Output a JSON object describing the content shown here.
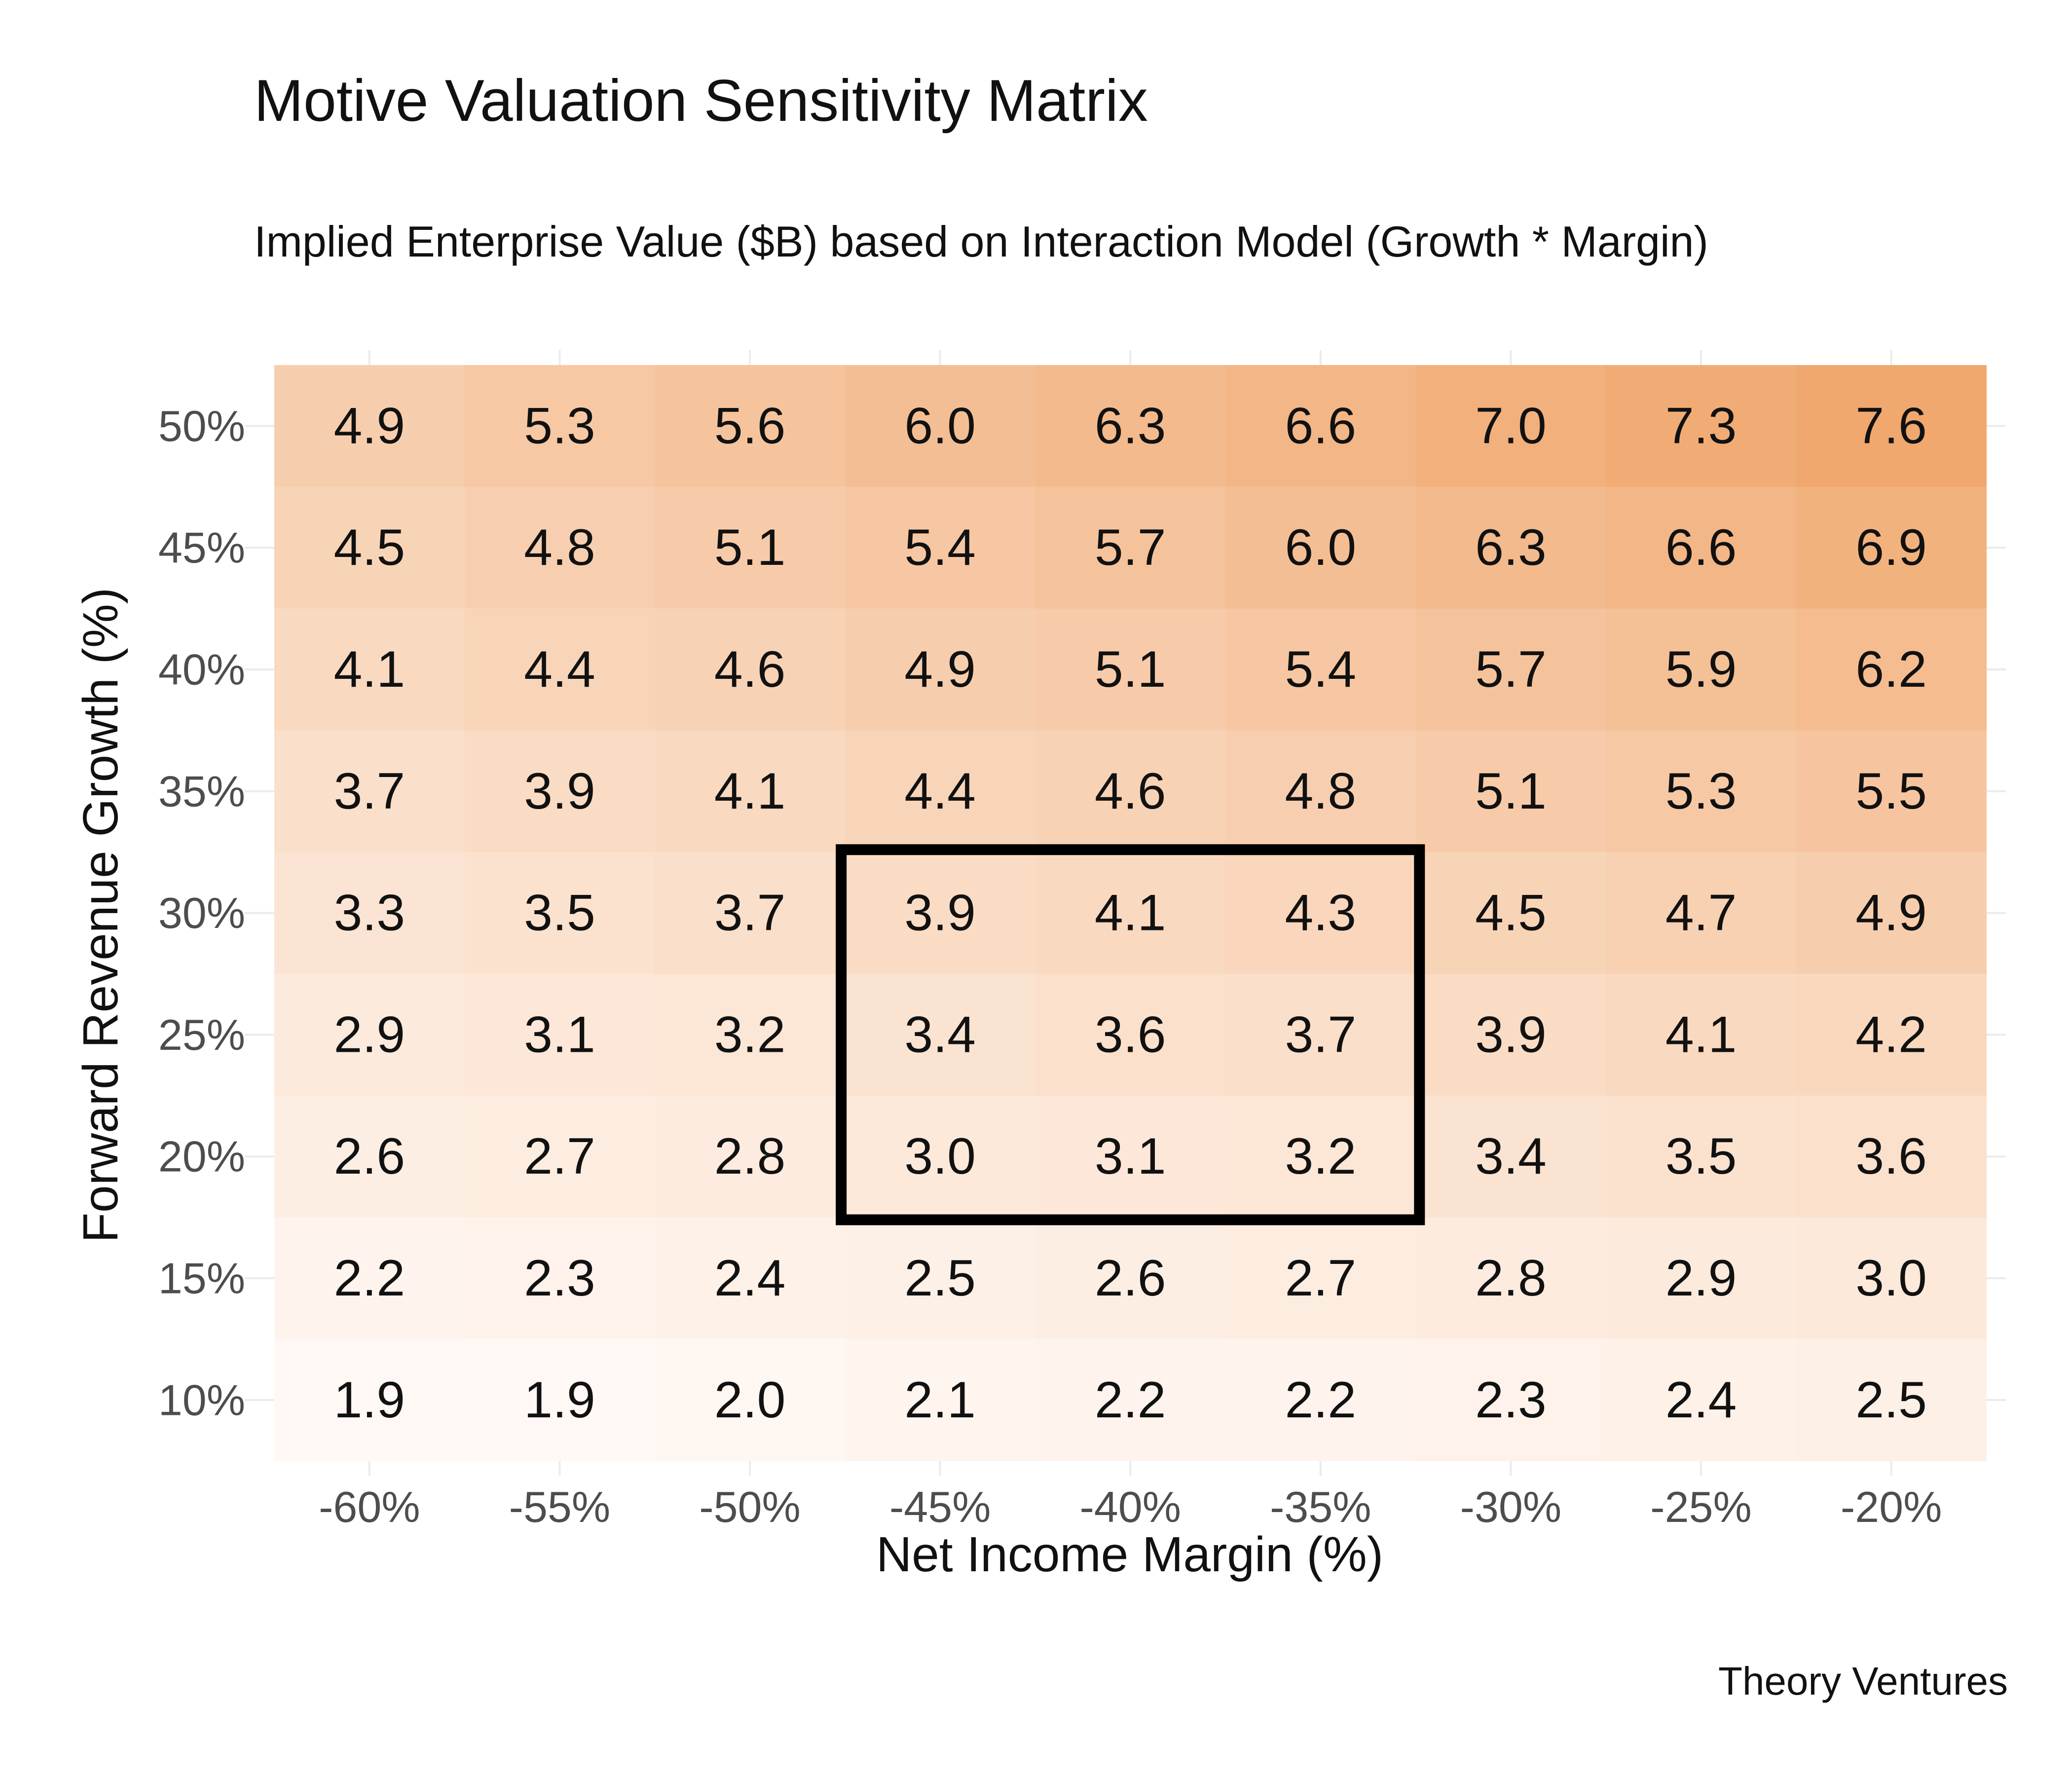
{
  "chart_data": {
    "type": "heatmap",
    "title": "Motive Valuation Sensitivity Matrix",
    "subtitle": "Implied Enterprise Value ($B) based on Interaction Model (Growth * Margin)",
    "xlabel": "Net Income Margin (%)",
    "ylabel": "Forward Revenue Growth (%)",
    "caption": "Theory Ventures",
    "x": [
      "-60%",
      "-55%",
      "-50%",
      "-45%",
      "-40%",
      "-35%",
      "-30%",
      "-25%",
      "-20%"
    ],
    "y": [
      "50%",
      "45%",
      "40%",
      "35%",
      "30%",
      "25%",
      "20%",
      "15%",
      "10%"
    ],
    "values": [
      [
        "4.9",
        "5.3",
        "5.6",
        "6.0",
        "6.3",
        "6.6",
        "7.0",
        "7.3",
        "7.6"
      ],
      [
        "4.5",
        "4.8",
        "5.1",
        "5.4",
        "5.7",
        "6.0",
        "6.3",
        "6.6",
        "6.9"
      ],
      [
        "4.1",
        "4.4",
        "4.6",
        "4.9",
        "5.1",
        "5.4",
        "5.7",
        "5.9",
        "6.2"
      ],
      [
        "3.7",
        "3.9",
        "4.1",
        "4.4",
        "4.6",
        "4.8",
        "5.1",
        "5.3",
        "5.5"
      ],
      [
        "3.3",
        "3.5",
        "3.7",
        "3.9",
        "4.1",
        "4.3",
        "4.5",
        "4.7",
        "4.9"
      ],
      [
        "2.9",
        "3.1",
        "3.2",
        "3.4",
        "3.6",
        "3.7",
        "3.9",
        "4.1",
        "4.2"
      ],
      [
        "2.6",
        "2.7",
        "2.8",
        "3.0",
        "3.1",
        "3.2",
        "3.4",
        "3.5",
        "3.6"
      ],
      [
        "2.2",
        "2.3",
        "2.4",
        "2.5",
        "2.6",
        "2.7",
        "2.8",
        "2.9",
        "3.0"
      ],
      [
        "1.9",
        "1.9",
        "2.0",
        "2.1",
        "2.2",
        "2.2",
        "2.3",
        "2.4",
        "2.5"
      ]
    ],
    "highlight": {
      "x": [
        "-45%",
        "-40%",
        "-35%"
      ],
      "y": [
        "30%",
        "25%",
        "20%"
      ]
    },
    "color_low": "#fff8f4",
    "color_high": "#f0a86e",
    "highlight_color": "#000000",
    "grid": true,
    "legend": "none"
  }
}
